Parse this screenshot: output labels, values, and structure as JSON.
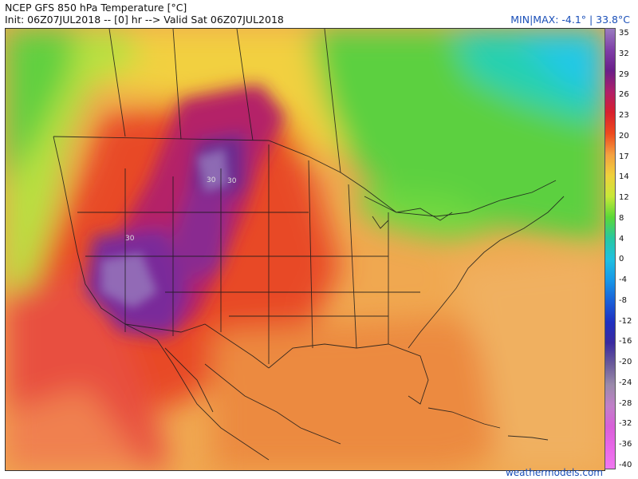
{
  "header": {
    "title": "NCEP GFS 850 hPa Temperature [°C]",
    "init_line": "Init: 06Z07JUL2018 -- [0] hr --> Valid Sat 06Z07JUL2018",
    "minmax": "MIN|MAX: -4.1° | 33.8°C"
  },
  "colorbar": {
    "labels": [
      "35",
      "32",
      "29",
      "26",
      "23",
      "20",
      "17",
      "14",
      "12",
      "8",
      "4",
      "0",
      "-4",
      "-8",
      "-12",
      "-16",
      "-20",
      "-24",
      "-28",
      "-32",
      "-36",
      "-40"
    ],
    "colors": [
      "#9a7cc0",
      "#7f3fa8",
      "#6a1f8a",
      "#b0206a",
      "#d8202e",
      "#ee4a1e",
      "#f4a040",
      "#f0d03c",
      "#c8e838",
      "#5ad838",
      "#28c8a0",
      "#20c0e0",
      "#1898e8",
      "#1a60d8",
      "#2030c0",
      "#3a2aa0",
      "#6a5a9a",
      "#9a8aaa",
      "#c080c8",
      "#d860d8",
      "#e868e8",
      "#f078f0"
    ]
  },
  "map": {
    "contour_labels": [
      "30",
      "30",
      "30"
    ]
  },
  "credit": "weathermodels.com"
}
